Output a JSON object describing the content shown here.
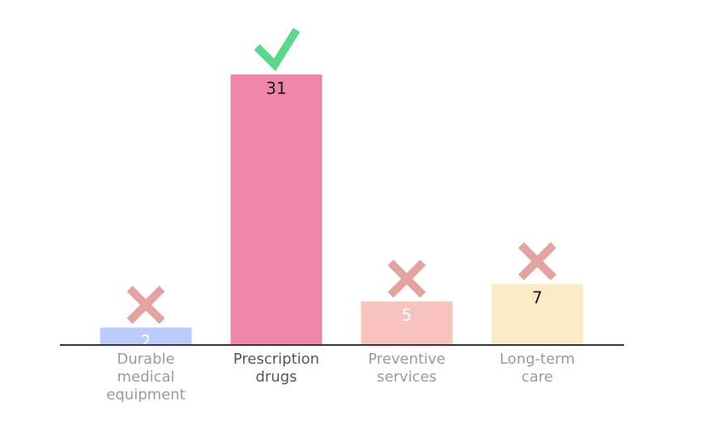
{
  "chart_data": {
    "type": "bar",
    "title": "",
    "xlabel": "",
    "ylabel": "",
    "ylim": [
      0,
      31
    ],
    "grid": false,
    "legend": "none",
    "categories": [
      "Durable medical equipment",
      "Prescription drugs",
      "Preventive services",
      "Long-term care"
    ],
    "category_lines": [
      [
        "Durable",
        "medical",
        "equipment"
      ],
      [
        "Prescription",
        "drugs"
      ],
      [
        "Preventive",
        "services"
      ],
      [
        "Long-term",
        "care"
      ]
    ],
    "values": [
      2,
      31,
      5,
      7
    ],
    "value_labels": [
      "2",
      "31",
      "5",
      "7"
    ],
    "bar_colors": [
      "#bccbfb",
      "#ee86a9",
      "#f8c3be",
      "#fbebc5"
    ],
    "value_label_colors": [
      "#ffffff",
      "#1a1a1a",
      "#ffffff",
      "#1a1a1a"
    ],
    "category_label_colors": [
      "#9a9a9a",
      "#555555",
      "#9a9a9a",
      "#9a9a9a"
    ],
    "markers": [
      "cross-icon",
      "check-icon",
      "cross-icon",
      "cross-icon"
    ],
    "marker_colors": {
      "check-icon": "#5ed68c",
      "cross-icon": "#e3a3a0"
    },
    "axis_color": "#333333"
  }
}
